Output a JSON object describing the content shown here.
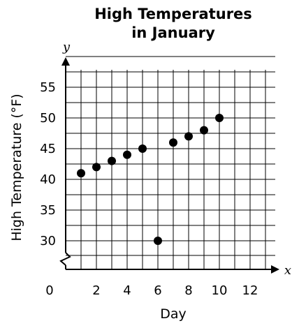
{
  "chart_data": {
    "type": "scatter",
    "title": [
      "High Temperatures",
      "in January"
    ],
    "xlabel": "Day",
    "ylabel": "High Temperature (°F)",
    "x_var": "x",
    "y_var": "y",
    "xlim": [
      0,
      13
    ],
    "ylim": [
      27.5,
      60
    ],
    "x_ticks": [
      0,
      2,
      4,
      6,
      8,
      10,
      12
    ],
    "y_ticks": [
      30,
      35,
      40,
      45,
      50,
      55
    ],
    "x_tick_labels": [
      "0",
      "2",
      "4",
      "6",
      "8",
      "10",
      "12"
    ],
    "y_tick_labels": [
      "30",
      "35",
      "40",
      "45",
      "50",
      "55"
    ],
    "grid": true,
    "y_axis_break": true,
    "points": [
      {
        "x": 1,
        "y": 41
      },
      {
        "x": 2,
        "y": 42
      },
      {
        "x": 3,
        "y": 43
      },
      {
        "x": 4,
        "y": 44
      },
      {
        "x": 5,
        "y": 45
      },
      {
        "x": 6,
        "y": 30
      },
      {
        "x": 7,
        "y": 46
      },
      {
        "x": 8,
        "y": 47
      },
      {
        "x": 9,
        "y": 48
      },
      {
        "x": 10,
        "y": 50
      }
    ]
  }
}
